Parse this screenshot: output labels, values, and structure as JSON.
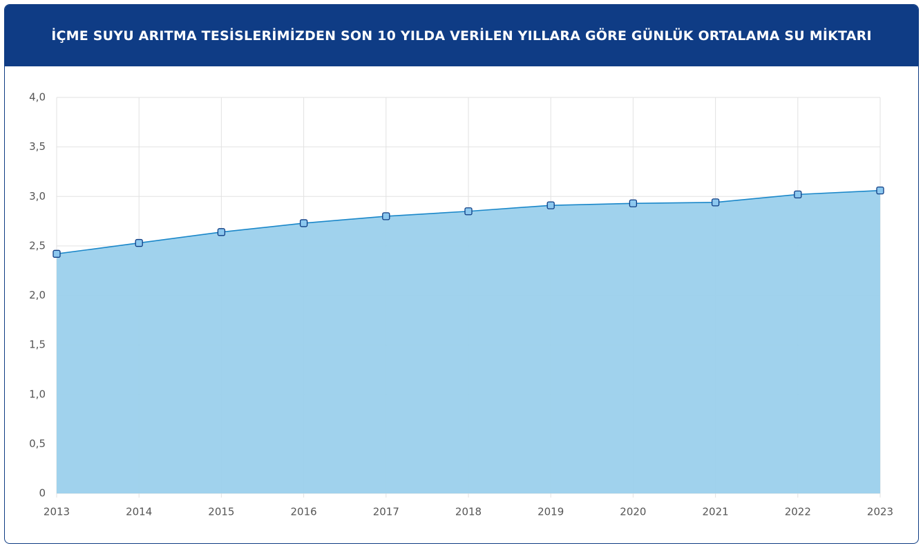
{
  "chart_data": {
    "type": "area",
    "title": "İÇME SUYU ARITMA TESİSLERİMİZDEN SON 10 YILDA VERİLEN YILLARA GÖRE GÜNLÜK ORTALAMA SU MİKTARI",
    "categories": [
      "2013",
      "2014",
      "2015",
      "2016",
      "2017",
      "2018",
      "2019",
      "2020",
      "2021",
      "2022",
      "2023"
    ],
    "values": [
      2.42,
      2.53,
      2.64,
      2.73,
      2.8,
      2.85,
      2.91,
      2.93,
      2.94,
      3.02,
      3.06
    ],
    "color": "#1a87c9",
    "fill_color": "#9bd0ec",
    "marker_color": "#8cc8ef",
    "ylim": [
      0,
      4
    ],
    "yticks": [
      0,
      {
        "value": 0.5,
        "label": "0,5"
      },
      {
        "value": 1,
        "label": "1,0"
      },
      {
        "value": 1.5,
        "label": "1,5"
      },
      {
        "value": 2,
        "label": "2,0"
      },
      {
        "value": 2.5,
        "label": "2,5"
      },
      {
        "value": 3,
        "label": "3,0"
      },
      {
        "value": 3.5,
        "label": "3,5"
      },
      {
        "value": 4,
        "label": "4,0"
      }
    ],
    "grid": true
  }
}
